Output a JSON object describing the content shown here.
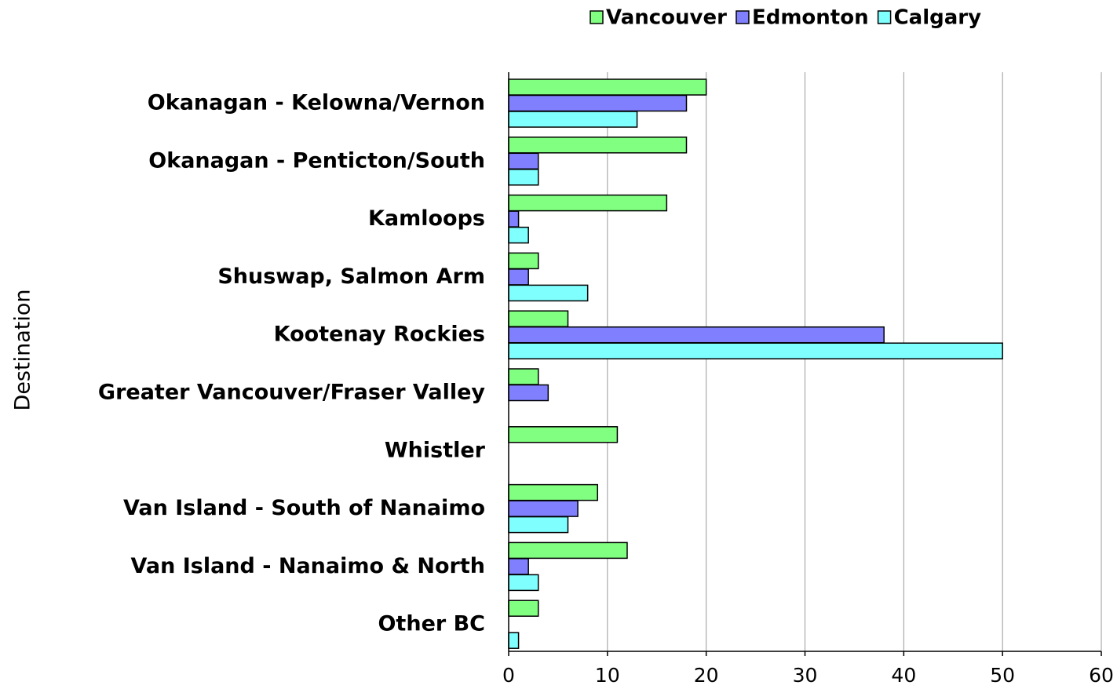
{
  "chart_data": {
    "type": "bar",
    "orientation": "horizontal",
    "y_label": "Destination",
    "categories": [
      "Okanagan - Kelowna/Vernon",
      "Okanagan - Penticton/South",
      "Kamloops",
      "Shuswap, Salmon Arm",
      "Kootenay Rockies",
      "Greater Vancouver/Fraser Valley",
      "Whistler",
      "Van Island - South of Nanaimo",
      "Van Island - Nanaimo & North",
      "Other BC"
    ],
    "series": [
      {
        "name": "Vancouver",
        "color": "#80ff80",
        "values": [
          20,
          18,
          16,
          3,
          6,
          3,
          11,
          9,
          12,
          3
        ]
      },
      {
        "name": "Edmonton",
        "color": "#8080ff",
        "values": [
          18,
          3,
          1,
          2,
          38,
          4,
          0,
          7,
          2,
          0
        ]
      },
      {
        "name": "Calgary",
        "color": "#80ffff",
        "values": [
          13,
          3,
          2,
          8,
          50,
          0,
          0,
          6,
          3,
          1
        ]
      }
    ],
    "xlim": [
      0,
      60
    ],
    "xticks": [
      0,
      10,
      20,
      30,
      40,
      50,
      60
    ],
    "grid": true,
    "legend": "top"
  }
}
